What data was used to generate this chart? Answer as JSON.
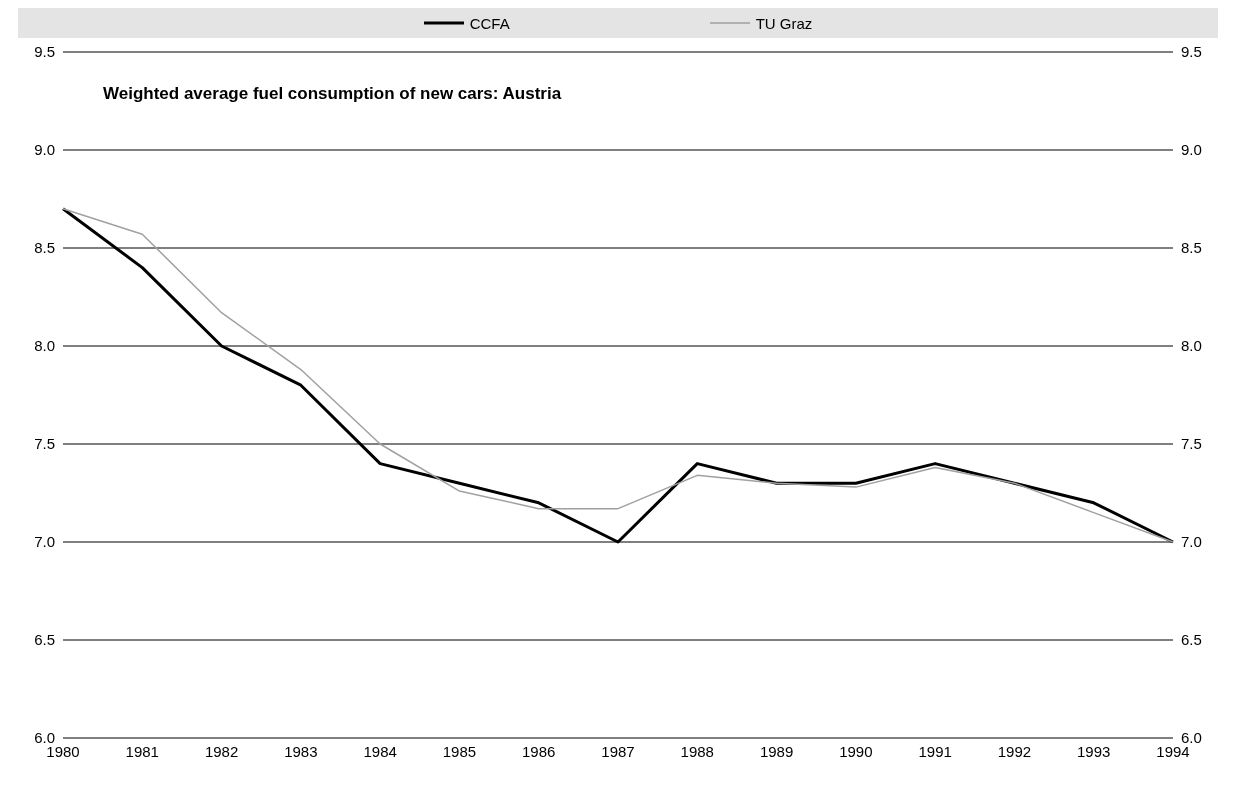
{
  "chart_data": {
    "type": "line",
    "title": "Weighted average fuel consumption of new cars: Austria",
    "categories": [
      "1980",
      "1981",
      "1982",
      "1983",
      "1984",
      "1985",
      "1986",
      "1987",
      "1988",
      "1989",
      "1990",
      "1991",
      "1992",
      "1993",
      "1994"
    ],
    "series": [
      {
        "name": "CCFA",
        "color": "#000000",
        "values": [
          8.7,
          8.4,
          8.0,
          7.8,
          7.4,
          7.3,
          7.2,
          7.0,
          7.4,
          7.3,
          7.3,
          7.4,
          7.3,
          7.2,
          7.0
        ]
      },
      {
        "name": "TU Graz",
        "color": "#a0a0a0",
        "values": [
          8.7,
          8.57,
          8.17,
          7.88,
          7.5,
          7.26,
          7.17,
          7.17,
          7.34,
          7.3,
          7.28,
          7.38,
          7.3,
          7.15,
          7.0
        ]
      }
    ],
    "ylim": [
      6.0,
      9.5
    ],
    "yticks": [
      {
        "value": 6.0,
        "label": "6.0"
      },
      {
        "value": 6.5,
        "label": "6.5"
      },
      {
        "value": 7.0,
        "label": "7.0"
      },
      {
        "value": 7.5,
        "label": "7.5"
      },
      {
        "value": 8.0,
        "label": "8.0"
      },
      {
        "value": 8.5,
        "label": "8.5"
      },
      {
        "value": 9.0,
        "label": "9.0"
      },
      {
        "value": 9.5,
        "label": "9.5"
      }
    ],
    "y2lim": [
      6.0,
      9.5
    ],
    "y2ticks": [
      {
        "value": 6.0,
        "label": "6.0"
      },
      {
        "value": 6.5,
        "label": "6.5"
      },
      {
        "value": 7.0,
        "label": "7.0"
      },
      {
        "value": 7.5,
        "label": "7.5"
      },
      {
        "value": 8.0,
        "label": "8.0"
      },
      {
        "value": 8.5,
        "label": "8.5"
      },
      {
        "value": 9.0,
        "label": "9.0"
      },
      {
        "value": 9.5,
        "label": "9.5"
      }
    ],
    "grid": "y",
    "legend": "top",
    "marker": "none",
    "line_style": "solid"
  }
}
